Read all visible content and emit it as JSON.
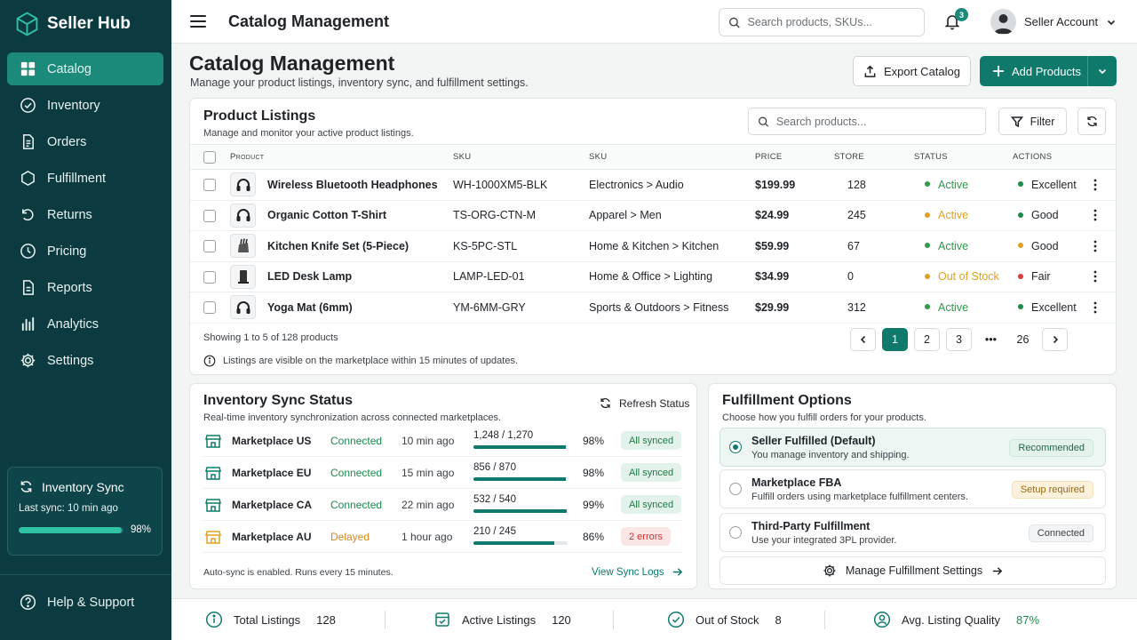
{
  "sidebar": {
    "brand": "Seller Hub",
    "items": [
      {
        "label": "Catalog",
        "icon": "grid-icon",
        "active": true
      },
      {
        "label": "Inventory",
        "icon": "check-circle-icon"
      },
      {
        "label": "Orders",
        "icon": "document-icon"
      },
      {
        "label": "Fulfillment",
        "icon": "box-icon"
      },
      {
        "label": "Returns",
        "icon": "return-icon"
      },
      {
        "label": "Pricing",
        "icon": "clock-icon"
      },
      {
        "label": "Reports",
        "icon": "report-icon"
      },
      {
        "label": "Analytics",
        "icon": "bar-chart-icon"
      },
      {
        "label": "Settings",
        "icon": "gear-icon"
      }
    ],
    "sync_card": {
      "title": "Inventory Sync",
      "last_sync": "Last sync: 10 min ago",
      "percent_label": "98%",
      "percent": 98
    },
    "help": "Help & Support"
  },
  "topbar": {
    "title": "Catalog Management",
    "search_placeholder": "Search products, SKUs...",
    "notification_count": "3",
    "account": "Seller Account"
  },
  "page": {
    "title": "Catalog Management",
    "subtitle": "Manage your product listings, inventory sync, and fulfillment settings.",
    "export_label": "Export Catalog",
    "add_label": "Add Products"
  },
  "listings": {
    "title": "Product Listings",
    "subtitle": "Manage and monitor your active product listings.",
    "search_placeholder": "Search products...",
    "filter_label": "Filter",
    "columns": {
      "product": "Product",
      "sku": "SKU",
      "category": "SKU",
      "price": "PRICE",
      "store": "STORE",
      "status": "STATUS",
      "actions": "ACTIONS"
    },
    "rows": [
      {
        "name": "Wireless Bluetooth Headphones",
        "sku": "WH-1000XM5-BLK",
        "category": "Electronics > Audio",
        "price": "$199.99",
        "store": "128",
        "status": "Active",
        "status_color": "#2e9a4a",
        "quality": "Excellent",
        "quality_color": "#1e8a4c",
        "thumb": "headphones-icon"
      },
      {
        "name": "Organic Cotton T-Shirt",
        "sku": "TS-ORG-CTN-M",
        "category": "Apparel > Men",
        "price": "$24.99",
        "store": "245",
        "status": "Active",
        "status_color": "#e0a123",
        "quality": "Good",
        "quality_color": "#1e8a4c",
        "thumb": "headphones-icon"
      },
      {
        "name": "Kitchen Knife Set (5-Piece)",
        "sku": "KS-5PC-STL",
        "category": "Home & Kitchen > Kitchen",
        "price": "$59.99",
        "store": "67",
        "status": "Active",
        "status_color": "#2e9a4a",
        "quality": "Good",
        "quality_color": "#e0a123",
        "thumb": "knife-block-icon"
      },
      {
        "name": "LED Desk Lamp",
        "sku": "LAMP-LED-01",
        "category": "Home & Office > Lighting",
        "price": "$34.99",
        "store": "0",
        "status": "Out of Stock",
        "status_color": "#e0a123",
        "quality": "Fair",
        "quality_color": "#d93a3a",
        "thumb": "lamp-icon"
      },
      {
        "name": "Yoga Mat (6mm)",
        "sku": "YM-6MM-GRY",
        "category": "Sports & Outdoors > Fitness",
        "price": "$29.99",
        "store": "312",
        "status": "Active",
        "status_color": "#2e9a4a",
        "quality": "Excellent",
        "quality_color": "#1e8a4c",
        "thumb": "headphones-icon"
      }
    ],
    "showing": "Showing 1 to 5 of 128 products",
    "note": "Listings are visible on the marketplace within 15 minutes of updates.",
    "pages": [
      "1",
      "2",
      "3",
      "•••",
      "26"
    ],
    "current_page": "1"
  },
  "inventory_sync": {
    "title": "Inventory Sync Status",
    "subtitle": "Real-time inventory synchronization across connected marketplaces.",
    "refresh_label": "Refresh Status",
    "rows": [
      {
        "name": "Marketplace US",
        "status": "Connected",
        "status_color": "#1e8a4c",
        "time": "10 min ago",
        "count": "1,248 / 1,270",
        "fraction": 0.98,
        "pct": "98%",
        "badge": "All synced",
        "badge_bg": "#e3f2ea",
        "badge_fg": "#1e7a45",
        "icon_color": "#0f7a6c"
      },
      {
        "name": "Marketplace EU",
        "status": "Connected",
        "status_color": "#1e8a4c",
        "time": "15 min ago",
        "count": "856 / 870",
        "fraction": 0.98,
        "pct": "98%",
        "badge": "All synced",
        "badge_bg": "#e3f2ea",
        "badge_fg": "#1e7a45",
        "icon_color": "#0f7a6c"
      },
      {
        "name": "Marketplace CA",
        "status": "Connected",
        "status_color": "#1e8a4c",
        "time": "22 min ago",
        "count": "532 / 540",
        "fraction": 0.99,
        "pct": "99%",
        "badge": "All synced",
        "badge_bg": "#e3f2ea",
        "badge_fg": "#1e7a45",
        "icon_color": "#0f7a6c"
      },
      {
        "name": "Marketplace AU",
        "status": "Delayed",
        "status_color": "#d9861a",
        "time": "1 hour ago",
        "count": "210 / 245",
        "fraction": 0.86,
        "pct": "86%",
        "badge": "2 errors",
        "badge_bg": "#fbe6e6",
        "badge_fg": "#c83434",
        "icon_color": "#e0a123"
      }
    ],
    "footer": "Auto-sync is enabled. Runs every 15 minutes.",
    "logs_label": "View Sync Logs"
  },
  "fulfillment": {
    "title": "Fulfillment Options",
    "subtitle": "Choose how you fulfill orders for your products.",
    "options": [
      {
        "title": "Seller Fulfilled (Default)",
        "desc": "You manage inventory and shipping.",
        "badge": "Recommended",
        "badge_bg": "#e3f2ea",
        "badge_fg": "#1e6a4a",
        "badge_border": "#cde5d8",
        "selected": true
      },
      {
        "title": "Marketplace FBA",
        "desc": "Fulfill orders using marketplace fulfillment centers.",
        "badge": "Setup required",
        "badge_bg": "#fdf1dc",
        "badge_fg": "#9a6a12",
        "badge_border": "#f3e0b8",
        "selected": false
      },
      {
        "title": "Third-Party Fulfillment",
        "desc": "Use your integrated 3PL provider.",
        "badge": "Connected",
        "badge_bg": "#f3f4f5",
        "badge_fg": "#3c4146",
        "badge_border": "#e1e4e6",
        "selected": false
      }
    ],
    "manage_label": "Manage Fulfillment Settings"
  },
  "stats": [
    {
      "label": "Total Listings",
      "value": "128",
      "icon": "info-circle-icon",
      "value_color": "#1f2328"
    },
    {
      "label": "Active Listings",
      "value": "120",
      "icon": "listing-check-icon",
      "value_color": "#1f2328"
    },
    {
      "label": "Out of Stock",
      "value": "8",
      "icon": "check-circle-icon",
      "value_color": "#1f2328"
    },
    {
      "label": "Avg. Listing Quality",
      "value": "87%",
      "icon": "quality-badge-icon",
      "value_color": "#1e8a4c"
    }
  ],
  "colors": {
    "sidebar": "#0b3b40",
    "accent": "#0f7a6c",
    "active_nav": "#1b8a7a"
  }
}
